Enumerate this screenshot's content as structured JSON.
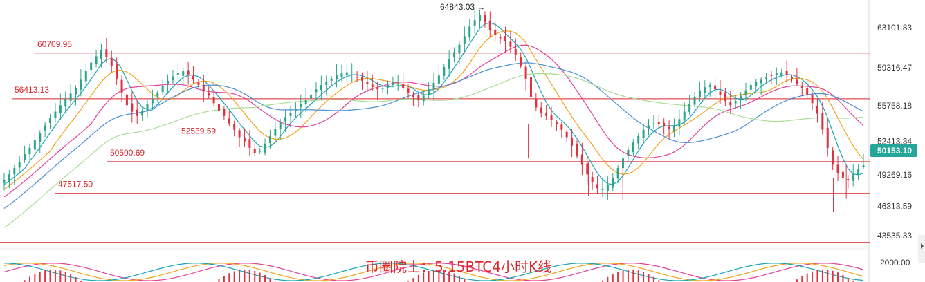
{
  "caption": "币圈院士：5.15BTC4小时K线",
  "chart_data": {
    "type": "candlestick",
    "title": "",
    "y_ticks": [
      "63101.83",
      "59316.47",
      "55758.18",
      "52413.34",
      "49269.16",
      "46313.59",
      "43535.33"
    ],
    "y_tick_values": [
      63101.83,
      59316.47,
      55758.18,
      52413.34,
      49269.16,
      46313.59,
      43535.33
    ],
    "indicator_tick": "2000.00",
    "ylim": [
      42300,
      65700
    ],
    "levels": [
      {
        "label": "60709.95",
        "value": 60709.95
      },
      {
        "label": "56413.13",
        "value": 56413.13
      },
      {
        "label": "52539.59",
        "value": 52539.59
      },
      {
        "label": "50500.69",
        "value": 50500.69
      },
      {
        "label": "47517.50",
        "value": 47517.5
      },
      {
        "label": "",
        "value": 42900
      }
    ],
    "high_annotation": {
      "label": "64843.03 →",
      "value": 64843.03
    },
    "current_price": {
      "label": "50153.10",
      "value": 50153.1
    },
    "ohlc_close": [
      48800,
      49300,
      49900,
      50500,
      51200,
      51800,
      52500,
      53200,
      53900,
      54600,
      55200,
      55800,
      56400,
      56900,
      57400,
      58200,
      59000,
      59800,
      60400,
      61000,
      60300,
      59500,
      58300,
      57000,
      55800,
      55200,
      54800,
      55300,
      55900,
      56400,
      57000,
      57600,
      58100,
      58500,
      58800,
      59000,
      58700,
      58200,
      57700,
      57100,
      56700,
      56000,
      55300,
      54800,
      54100,
      53500,
      52800,
      52400,
      51800,
      51300,
      51500,
      52200,
      52900,
      53600,
      54200,
      54700,
      55100,
      55500,
      55900,
      56300,
      56800,
      57300,
      57700,
      58000,
      58300,
      58600,
      58800,
      58900,
      58700,
      58400,
      58100,
      57800,
      57500,
      57300,
      57400,
      57700,
      58000,
      57800,
      57400,
      57000,
      56600,
      56300,
      56700,
      57300,
      57900,
      58600,
      59400,
      60100,
      60800,
      61500,
      62300,
      63200,
      63800,
      64300,
      63600,
      62900,
      62400,
      62100,
      61800,
      61300,
      60500,
      59500,
      58300,
      56600,
      55600,
      55100,
      54800,
      54400,
      54000,
      53500,
      52800,
      52000,
      51000,
      50200,
      49300,
      48600,
      48000,
      47900,
      48300,
      49000,
      49900,
      50800,
      51600,
      52300,
      52900,
      53500,
      53900,
      54100,
      54000,
      53800,
      53600,
      53900,
      54500,
      55200,
      55900,
      56600,
      57200,
      57500,
      57700,
      57300,
      56800,
      56200,
      55800,
      56200,
      56700,
      57200,
      57700,
      58000,
      58200,
      58400,
      58600,
      58800,
      58900,
      58700,
      58300,
      57800,
      57400,
      56800,
      56000,
      55000,
      53500,
      51800,
      50200,
      49400,
      49000,
      48800,
      49300,
      49800,
      50153
    ],
    "ma_series": [
      {
        "color": "#19a3b6"
      },
      {
        "color": "#f2a21d"
      },
      {
        "color": "#e0409a"
      },
      {
        "color": "#4a8fd4"
      },
      {
        "color": "#a9dd96"
      }
    ]
  }
}
